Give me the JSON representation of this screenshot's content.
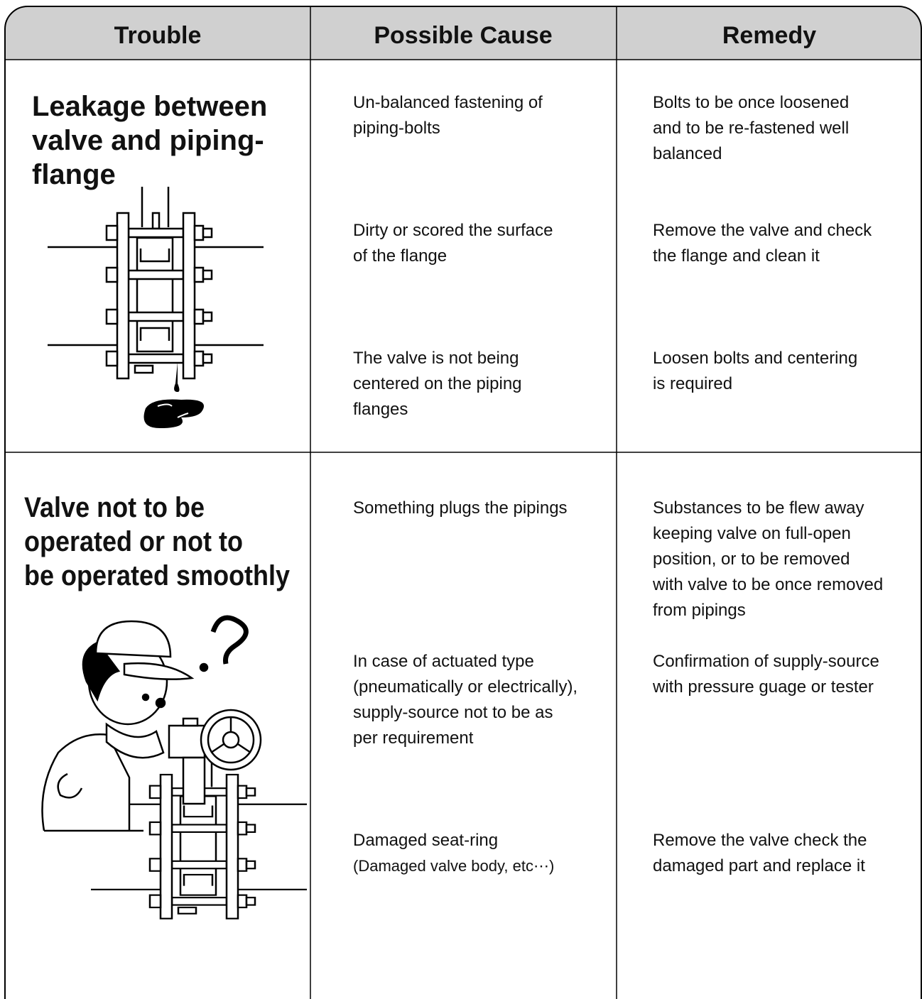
{
  "header": {
    "columns": [
      "Trouble",
      "Possible Cause",
      "Remedy"
    ]
  },
  "rows": [
    {
      "trouble": [
        "Leakage between",
        "valve and piping-",
        "flange"
      ],
      "items": [
        {
          "cause": [
            "Un-balanced fastening of",
            "piping-bolts"
          ],
          "remedy": [
            "Bolts to be once loosened",
            "and to be re-fastened well",
            "balanced"
          ]
        },
        {
          "cause": [
            "Dirty or scored the surface",
            "of the flange"
          ],
          "remedy": [
            "Remove the valve and check",
            "the flange and clean it"
          ]
        },
        {
          "cause": [
            "The valve is not being",
            "centered on the piping",
            "flanges"
          ],
          "remedy": [
            "Loosen bolts and centering",
            "is required"
          ]
        }
      ]
    },
    {
      "trouble": [
        "Valve not to be",
        "operated or not to",
        "be operated smoothly"
      ],
      "items": [
        {
          "cause": [
            "Something plugs the pipings"
          ],
          "remedy": [
            "Substances to be flew away",
            "keeping valve on full-open",
            "position, or to be removed",
            "with valve to be once removed",
            "from pipings"
          ]
        },
        {
          "cause": [
            "In case of actuated type",
            "(pneumatically or electrically),",
            "supply-source not to be as",
            "per requirement"
          ],
          "remedy": [
            "Confirmation of supply-source",
            "with pressure guage or tester"
          ]
        },
        {
          "cause": [
            "Damaged seat-ring",
            "(Damaged valve body, etc⋯)"
          ],
          "remedy": [
            "Remove the valve check the",
            "damaged part and replace it"
          ]
        }
      ]
    }
  ]
}
